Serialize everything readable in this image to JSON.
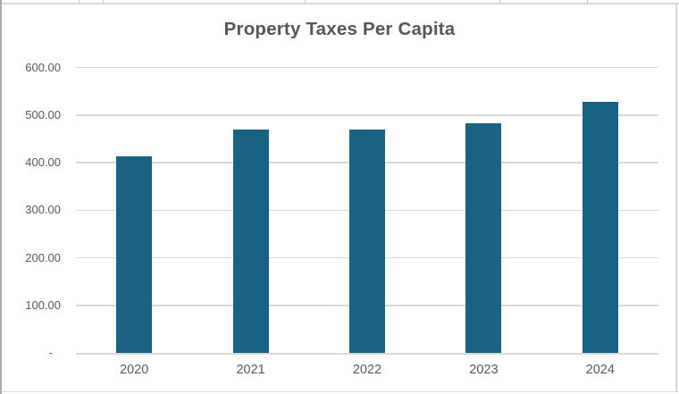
{
  "chart_data": {
    "type": "bar",
    "title": "Property Taxes Per Capita",
    "categories": [
      "2020",
      "2021",
      "2022",
      "2023",
      "2024"
    ],
    "values": [
      413,
      470,
      469,
      482,
      527
    ],
    "y_ticks": [
      {
        "value": 600,
        "label": "600.00"
      },
      {
        "value": 500,
        "label": "500.00"
      },
      {
        "value": 400,
        "label": "400.00"
      },
      {
        "value": 300,
        "label": "300.00"
      },
      {
        "value": 200,
        "label": "200.00"
      },
      {
        "value": 100,
        "label": "100.00"
      },
      {
        "value": 0,
        "label": "-"
      }
    ],
    "xlabel": "",
    "ylabel": "",
    "ylim": [
      0,
      600
    ],
    "grid": true,
    "legend": "none",
    "bar_color": "#1A6284",
    "gridline_color": "#D9D9D9",
    "axis_line_color": "#D9D9D9",
    "label_color": "#595959",
    "title_color": "#565656",
    "border_color": "#D9D9D9"
  }
}
